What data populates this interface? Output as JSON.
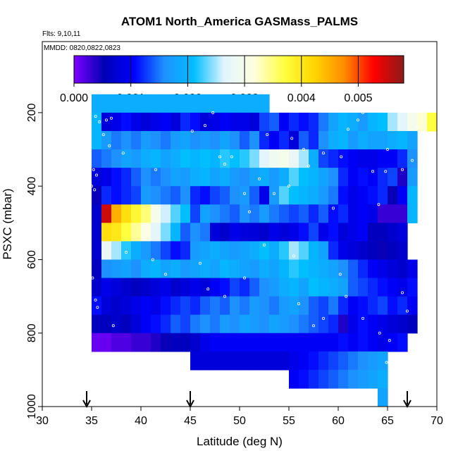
{
  "chart_data": {
    "type": "heatmap",
    "title": "ATOM1 North_America GASMass_PALMS",
    "annotations": [
      "Flts: 9,10,11",
      "MMDD: 0820,0822,0823"
    ],
    "xlabel": "Latitude (deg N)",
    "ylabel": "PSXC (mbar)",
    "xlim": [
      30,
      70
    ],
    "ylim": [
      1000,
      0
    ],
    "y_reversed": true,
    "x_ticks": [
      30,
      35,
      40,
      45,
      50,
      55,
      60,
      65,
      70
    ],
    "y_ticks": [
      200,
      400,
      600,
      800,
      1000
    ],
    "colorbar": {
      "range": [
        0,
        0.0058
      ],
      "ticks": [
        0.0,
        0.001,
        0.002,
        0.003,
        0.004,
        0.005
      ],
      "tick_labels": [
        "0.000",
        "0.001",
        "0.002",
        "0.003",
        "0.004",
        "0.005"
      ],
      "stops": [
        "#7f00ff",
        "#0000b4",
        "#0000ff",
        "#1e90ff",
        "#00bfff",
        "#e0f4ff",
        "#ffffe0",
        "#ffff40",
        "#ffd700",
        "#ff8c00",
        "#ff0000",
        "#8b1a1a"
      ]
    },
    "flight_marker_latitudes": [
      34.5,
      45,
      67
    ],
    "lat_edges": [
      35,
      36,
      37,
      38,
      39,
      40,
      41,
      42,
      43,
      44,
      45,
      46,
      47,
      48,
      49,
      50,
      51,
      52,
      53,
      54,
      55,
      56,
      57,
      58,
      59,
      60,
      61,
      62,
      63,
      64,
      65,
      66,
      67,
      68,
      69,
      70
    ],
    "p_edges": [
      150,
      200,
      250,
      300,
      350,
      400,
      450,
      500,
      550,
      600,
      650,
      700,
      750,
      800,
      850,
      900,
      950
    ],
    "rows": [
      {
        "p": [
          150,
          200
        ],
        "lat": [
          35,
          53
        ],
        "values": [
          0.0019,
          0.0019,
          0.0019,
          0.0019,
          0.0019,
          0.0019,
          0.0019,
          0.0019,
          0.0019,
          0.0019,
          0.0019,
          0.0019,
          0.0019,
          0.0019,
          0.0019,
          0.0019,
          0.0019,
          0.0019
        ]
      },
      {
        "p": [
          200,
          250
        ],
        "lat": [
          35,
          70
        ],
        "values": [
          0.002,
          0.0008,
          0.0009,
          0.0011,
          0.0009,
          0.0008,
          0.0009,
          0.001,
          0.0008,
          0.0012,
          0.0011,
          0.0008,
          0.0009,
          0.001,
          0.0009,
          0.0009,
          0.0008,
          0.0013,
          0.0014,
          0.001,
          0.0012,
          0.0011,
          0.0012,
          0.0015,
          0.0018,
          0.002,
          0.0019,
          0.0017,
          0.002,
          0.0021,
          0.0025,
          0.0027,
          0.003,
          0.0032,
          0.0037
        ]
      },
      {
        "p": [
          250,
          300
        ],
        "lat": [
          35,
          68
        ],
        "values": [
          0.002,
          0.0017,
          0.0015,
          0.0016,
          0.0015,
          0.0017,
          0.0016,
          0.0015,
          0.0017,
          0.0018,
          0.0016,
          0.0017,
          0.0016,
          0.0018,
          0.0016,
          0.0014,
          0.0016,
          0.0012,
          0.001,
          0.0012,
          0.0008,
          0.0014,
          0.0012,
          0.0016,
          0.0019,
          0.002,
          0.0017,
          0.0019,
          0.0018,
          0.0018,
          0.0019,
          0.002,
          0.0018
        ]
      },
      {
        "p": [
          300,
          350
        ],
        "lat": [
          35,
          68
        ],
        "values": [
          0.0014,
          0.0015,
          0.0016,
          0.0018,
          0.0017,
          0.0019,
          0.002,
          0.0018,
          0.0019,
          0.0021,
          0.002,
          0.0021,
          0.002,
          0.0022,
          0.0021,
          0.0022,
          0.0024,
          0.0027,
          0.0029,
          0.003,
          0.0028,
          0.0025,
          0.0019,
          0.0013,
          0.0012,
          0.0011,
          0.001,
          0.0009,
          0.0009,
          0.001,
          0.001,
          0.0012,
          0.0016
        ]
      },
      {
        "p": [
          350,
          400
        ],
        "lat": [
          35,
          68
        ],
        "values": [
          0.0008,
          0.0009,
          0.0011,
          0.0012,
          0.0014,
          0.0016,
          0.0015,
          0.0016,
          0.0018,
          0.0017,
          0.0019,
          0.002,
          0.0018,
          0.0019,
          0.0017,
          0.0016,
          0.0018,
          0.0019,
          0.0017,
          0.0019,
          0.0023,
          0.0021,
          0.002,
          0.0018,
          0.0016,
          0.0012,
          0.001,
          0.0011,
          0.001,
          0.0012,
          0.0013,
          0.0004,
          0.0017
        ]
      },
      {
        "p": [
          400,
          450
        ],
        "lat": [
          35,
          68
        ],
        "values": [
          0.0005,
          0.0012,
          0.0011,
          0.0012,
          0.0013,
          0.0017,
          0.0016,
          0.0015,
          0.0014,
          0.0016,
          0.0012,
          0.0011,
          0.0013,
          0.0014,
          0.0016,
          0.0017,
          0.0014,
          0.0009,
          0.0017,
          0.0023,
          0.0021,
          0.002,
          0.0019,
          0.0017,
          0.0015,
          0.0011,
          0.0009,
          0.001,
          0.0011,
          0.0012,
          0.0005,
          0.001,
          0.002
        ]
      },
      {
        "p": [
          450,
          500
        ],
        "lat": [
          35,
          68
        ],
        "values": [
          0.0007,
          0.0055,
          0.0045,
          0.0041,
          0.0038,
          0.0035,
          0.003,
          0.0026,
          0.0023,
          0.0021,
          0.0013,
          0.0018,
          0.0016,
          0.0015,
          0.0014,
          0.0016,
          0.0015,
          0.0017,
          0.0015,
          0.0014,
          0.0013,
          0.0014,
          0.0012,
          0.0014,
          0.0011,
          0.0012,
          0.0009,
          0.001,
          0.0009,
          0.0003,
          0.0003,
          0.0003,
          0.002
        ]
      },
      {
        "p": [
          500,
          550
        ],
        "lat": [
          35,
          67
        ],
        "values": [
          0.0007,
          0.0041,
          0.004,
          0.0037,
          0.0034,
          0.0031,
          0.0027,
          0.0024,
          0.002,
          0.0014,
          0.0016,
          0.0015,
          0.0008,
          0.0007,
          0.0009,
          0.0008,
          0.0008,
          0.0007,
          0.0009,
          0.0008,
          0.0009,
          0.0011,
          0.0013,
          0.0009,
          0.0011,
          0.0008,
          0.0009,
          0.001,
          0.0006,
          0.0006,
          0.0007,
          0.0008
        ]
      },
      {
        "p": [
          550,
          600
        ],
        "lat": [
          35,
          67
        ],
        "values": [
          0.0007,
          0.0028,
          0.0025,
          0.0022,
          0.0019,
          0.0017,
          0.0015,
          0.0013,
          0.0011,
          0.0012,
          0.0017,
          0.0018,
          0.0019,
          0.0018,
          0.0017,
          0.0018,
          0.0019,
          0.0021,
          0.0019,
          0.0022,
          0.0025,
          0.0023,
          0.002,
          0.0018,
          0.0012,
          0.0009,
          0.0008,
          0.0007,
          0.0006,
          0.0005,
          0.0006,
          0.0007
        ]
      },
      {
        "p": [
          600,
          650
        ],
        "lat": [
          35,
          68
        ],
        "values": [
          0.0006,
          0.0016,
          0.0017,
          0.0018,
          0.0016,
          0.0019,
          0.002,
          0.0018,
          0.0019,
          0.0017,
          0.0018,
          0.0019,
          0.0018,
          0.002,
          0.0019,
          0.0018,
          0.0017,
          0.0019,
          0.0018,
          0.002,
          0.0022,
          0.0021,
          0.002,
          0.0019,
          0.0018,
          0.0016,
          0.0014,
          0.0012,
          0.001,
          0.0009,
          0.0008,
          0.0007,
          0.0009
        ]
      },
      {
        "p": [
          650,
          700
        ],
        "lat": [
          35,
          68
        ],
        "values": [
          0.0007,
          0.0009,
          0.0008,
          0.0007,
          0.0006,
          0.0007,
          0.0008,
          0.0009,
          0.0007,
          0.0008,
          0.0009,
          0.0008,
          0.001,
          0.0011,
          0.0013,
          0.0012,
          0.0014,
          0.0016,
          0.0017,
          0.0019,
          0.002,
          0.0018,
          0.0021,
          0.002,
          0.0019,
          0.0018,
          0.0014,
          0.0013,
          0.0012,
          0.0011,
          0.001,
          0.0009,
          0.0011
        ]
      },
      {
        "p": [
          700,
          750
        ],
        "lat": [
          35,
          68
        ],
        "values": [
          0.0011,
          0.0008,
          0.0007,
          0.0008,
          0.0009,
          0.001,
          0.0009,
          0.0011,
          0.0012,
          0.0013,
          0.0012,
          0.0014,
          0.0015,
          0.0014,
          0.0016,
          0.0015,
          0.0017,
          0.0016,
          0.0015,
          0.0017,
          0.0018,
          0.0016,
          0.0014,
          0.0013,
          0.0015,
          0.0012,
          0.001,
          0.0011,
          0.0012,
          0.0013,
          0.0011,
          0.0012,
          0.001
        ]
      },
      {
        "p": [
          750,
          800
        ],
        "lat": [
          35,
          68
        ],
        "values": [
          0.0006,
          0.0006,
          0.0007,
          0.0006,
          0.0008,
          0.001,
          0.0011,
          0.0012,
          0.0014,
          0.0013,
          0.0015,
          0.0016,
          0.0015,
          0.0017,
          0.0016,
          0.0018,
          0.0017,
          0.0016,
          0.0018,
          0.0017,
          0.0016,
          0.0015,
          0.0014,
          0.0013,
          0.0012,
          0.0004,
          0.0009,
          0.0011,
          0.001,
          0.0009,
          0.0008,
          0.0007,
          0.0006
        ]
      },
      {
        "p": [
          800,
          850
        ],
        "lat": [
          35,
          67
        ],
        "values": [
          0.0001,
          0.0001,
          0.0002,
          0.0002,
          0.0003,
          0.0003,
          0.0004,
          0.0005,
          0.0006,
          0.0006,
          0.0007,
          0.0009,
          0.001,
          0.001,
          0.001,
          0.001,
          0.001,
          0.001,
          0.001,
          0.001,
          0.001,
          0.001,
          0.001,
          0.001,
          0.001,
          0.0011,
          0.001,
          0.0011,
          0.001,
          0.0009,
          0.001,
          0.0011
        ]
      },
      {
        "p": [
          850,
          900
        ],
        "lat": [
          45,
          65
        ],
        "values": [
          0.0008,
          0.0008,
          0.0008,
          0.0008,
          0.0008,
          0.0008,
          0.0008,
          0.0008,
          0.0008,
          0.0008,
          0.0009,
          0.001,
          0.0011,
          0.0012,
          0.0013,
          0.0014,
          0.0015,
          0.0016,
          0.0017,
          0.0018
        ]
      },
      {
        "p": [
          900,
          950
        ],
        "lat": [
          55,
          65
        ],
        "values": [
          0.001,
          0.0011,
          0.0012,
          0.0013,
          0.0014,
          0.0015,
          0.0016,
          0.0017,
          0.0018,
          0.0019
        ]
      },
      {
        "p": [
          950,
          1000
        ],
        "lat": [
          64,
          65
        ],
        "values": [
          0.0018
        ]
      }
    ],
    "sample_points": [
      [
        35.4,
        210
      ],
      [
        35.8,
        225
      ],
      [
        36.5,
        220
      ],
      [
        37.0,
        215
      ],
      [
        36.2,
        260
      ],
      [
        36.8,
        290
      ],
      [
        35.2,
        355
      ],
      [
        35.5,
        370
      ],
      [
        35.0,
        400
      ],
      [
        35.3,
        410
      ],
      [
        38.2,
        310
      ],
      [
        41.5,
        355
      ],
      [
        45.2,
        250
      ],
      [
        46.5,
        235
      ],
      [
        47.3,
        200
      ],
      [
        48.0,
        320
      ],
      [
        48.5,
        340
      ],
      [
        49.2,
        320
      ],
      [
        50.5,
        420
      ],
      [
        51.0,
        470
      ],
      [
        52.8,
        260
      ],
      [
        53.5,
        420
      ],
      [
        52.0,
        380
      ],
      [
        55.0,
        400
      ],
      [
        55.3,
        270
      ],
      [
        56.5,
        300
      ],
      [
        57.0,
        345
      ],
      [
        58.5,
        310
      ],
      [
        59.5,
        460
      ],
      [
        60.3,
        320
      ],
      [
        61.0,
        245
      ],
      [
        62.0,
        220
      ],
      [
        62.5,
        200
      ],
      [
        63.5,
        360
      ],
      [
        64.1,
        450
      ],
      [
        64.8,
        360
      ],
      [
        65.0,
        300
      ],
      [
        66.5,
        355
      ],
      [
        67.5,
        330
      ],
      [
        68.0,
        240
      ],
      [
        38.5,
        580
      ],
      [
        41.2,
        600
      ],
      [
        42.5,
        640
      ],
      [
        46.0,
        610
      ],
      [
        46.8,
        680
      ],
      [
        48.5,
        700
      ],
      [
        50.5,
        650
      ],
      [
        52.5,
        560
      ],
      [
        55.5,
        590
      ],
      [
        56.0,
        720
      ],
      [
        57.5,
        780
      ],
      [
        58.5,
        760
      ],
      [
        60.2,
        640
      ],
      [
        60.8,
        700
      ],
      [
        62.5,
        760
      ],
      [
        64.2,
        800
      ],
      [
        64.9,
        880
      ],
      [
        65.2,
        820
      ],
      [
        66.5,
        690
      ],
      [
        67.0,
        740
      ],
      [
        35.1,
        650
      ],
      [
        35.4,
        710
      ],
      [
        35.6,
        730
      ],
      [
        37.2,
        780
      ]
    ]
  }
}
